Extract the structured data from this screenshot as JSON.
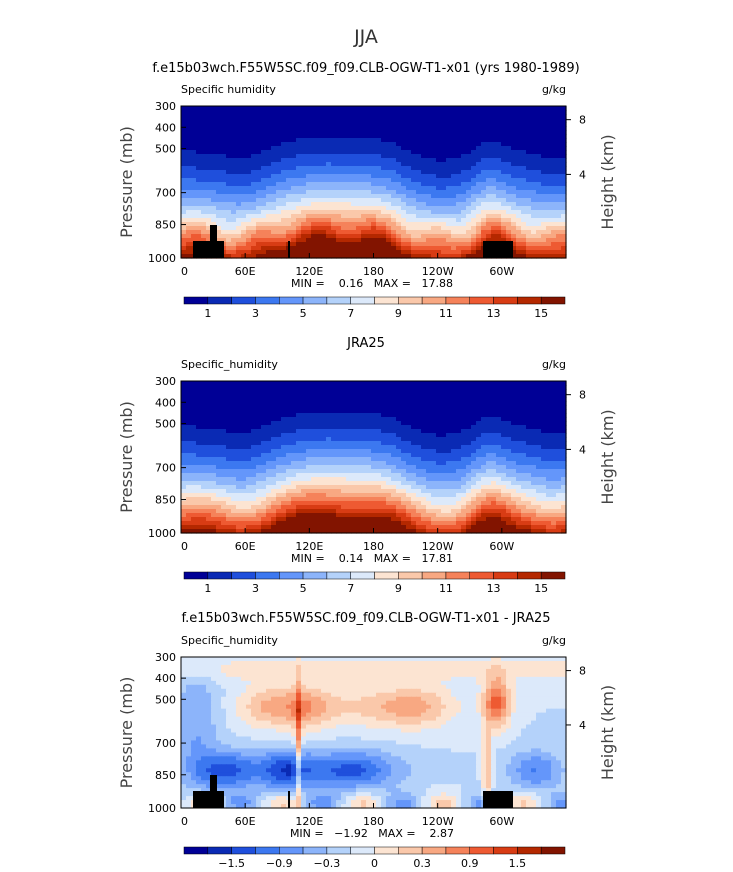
{
  "page_title": "JJA",
  "chart_data": [
    {
      "type": "heatmap",
      "title": "f.e15b03wch.F55W5SC.f09_f09.CLB-OGW-T1-x01 (yrs 1980-1989)",
      "variable": "Specific humidity",
      "units": "g/kg",
      "ylabel": "Pressure (mb)",
      "ylabel_right": "Height (km)",
      "x_ticks": [
        "0",
        "60E",
        "120E",
        "180",
        "120W",
        "60W"
      ],
      "y_ticks": [
        "300",
        "400",
        "500",
        "700",
        "850",
        "1000"
      ],
      "y_ticks_right": [
        "8",
        "4"
      ],
      "xlim": [
        0,
        360
      ],
      "min_max_label": "MIN =    0.16   MAX =   17.88",
      "min": 0.16,
      "max": 17.88,
      "colorbar": {
        "labels": [
          "1",
          "3",
          "5",
          "7",
          "9",
          "11",
          "13",
          "15"
        ],
        "colors": [
          "#000096",
          "#0a2ab4",
          "#1f4fdc",
          "#3c78f0",
          "#6496fa",
          "#8cb4fa",
          "#b4d2fa",
          "#dce9fa",
          "#fce4d2",
          "#fac8aa",
          "#f8a882",
          "#f5825a",
          "#ee5a32",
          "#d83c14",
          "#b42800",
          "#821400"
        ]
      }
    },
    {
      "type": "heatmap",
      "title": "JRA25",
      "variable": "Specific_humidity",
      "units": "g/kg",
      "ylabel": "Pressure (mb)",
      "ylabel_right": "Height (km)",
      "x_ticks": [
        "0",
        "60E",
        "120E",
        "180",
        "120W",
        "60W"
      ],
      "y_ticks": [
        "300",
        "400",
        "500",
        "700",
        "850",
        "1000"
      ],
      "y_ticks_right": [
        "8",
        "4"
      ],
      "xlim": [
        0,
        360
      ],
      "min_max_label": "MIN =    0.14   MAX =   17.81",
      "min": 0.14,
      "max": 17.81,
      "colorbar": {
        "labels": [
          "1",
          "3",
          "5",
          "7",
          "9",
          "11",
          "13",
          "15"
        ],
        "colors": [
          "#000096",
          "#0a2ab4",
          "#1f4fdc",
          "#3c78f0",
          "#6496fa",
          "#8cb4fa",
          "#b4d2fa",
          "#dce9fa",
          "#fce4d2",
          "#fac8aa",
          "#f8a882",
          "#f5825a",
          "#ee5a32",
          "#d83c14",
          "#b42800",
          "#821400"
        ]
      }
    },
    {
      "type": "heatmap",
      "title": "f.e15b03wch.F55W5SC.f09_f09.CLB-OGW-T1-x01 - JRA25",
      "variable": "Specific_humidity",
      "units": "g/kg",
      "ylabel": "Pressure (mb)",
      "ylabel_right": "Height (km)",
      "x_ticks": [
        "0",
        "60E",
        "120E",
        "180",
        "120W",
        "60W"
      ],
      "y_ticks": [
        "300",
        "400",
        "500",
        "700",
        "850",
        "1000"
      ],
      "y_ticks_right": [
        "8",
        "4"
      ],
      "xlim": [
        0,
        360
      ],
      "min_max_label": "MIN =   −1.92   MAX =    2.87",
      "min": -1.92,
      "max": 2.87,
      "colorbar": {
        "labels": [
          "−1.5",
          "−0.9",
          "−0.3",
          "0",
          "0.3",
          "0.9",
          "1.5"
        ],
        "colors": [
          "#000096",
          "#0a2ab4",
          "#1f4fdc",
          "#3c78f0",
          "#6496fa",
          "#8cb4fa",
          "#b4d2fa",
          "#dce9fa",
          "#fce4d2",
          "#fac8aa",
          "#f8a882",
          "#f5825a",
          "#ee5a32",
          "#d83c14",
          "#b42800",
          "#821400"
        ]
      }
    }
  ]
}
